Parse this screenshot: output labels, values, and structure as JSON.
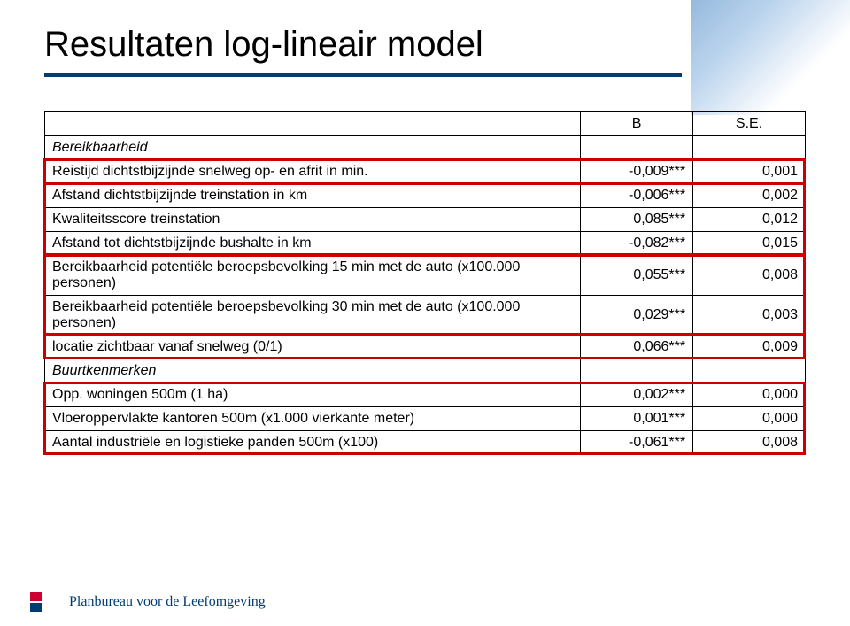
{
  "title": "Resultaten log-lineair model",
  "columns": {
    "b": "B",
    "se": "S.E."
  },
  "sections": {
    "bereikbaarheid": "Bereikbaarheid",
    "buurtkenmerken": "Buurtkenmerken"
  },
  "rows": {
    "r1": {
      "label": "Reistijd dichtstbijzijnde snelweg op- en afrit in min.",
      "b": "-0,009***",
      "se": "0,001"
    },
    "r2": {
      "label": "Afstand dichtstbijzijnde treinstation in km",
      "b": "-0,006***",
      "se": "0,002"
    },
    "r3": {
      "label": "Kwaliteitsscore treinstation",
      "b": "0,085***",
      "se": "0,012"
    },
    "r4": {
      "label": "Afstand tot dichtstbijzijnde bushalte in km",
      "b": "-0,082***",
      "se": "0,015"
    },
    "r5": {
      "label": "Bereikbaarheid potentiële beroepsbevolking 15 min met de auto (x100.000 personen)",
      "b": "0,055***",
      "se": "0,008"
    },
    "r6": {
      "label": "Bereikbaarheid potentiële beroepsbevolking 30 min met de auto (x100.000 personen)",
      "b": "0,029***",
      "se": "0,003"
    },
    "r7": {
      "label": "locatie zichtbaar vanaf snelweg (0/1)",
      "b": "0,066***",
      "se": "0,009"
    },
    "r8": {
      "label": "Opp. woningen 500m (1 ha)",
      "b": "0,002***",
      "se": "0,000"
    },
    "r9": {
      "label": "Vloeroppervlakte kantoren 500m (x1.000 vierkante meter)",
      "b": "0,001***",
      "se": "0,000"
    },
    "r10": {
      "label": "Aantal industriële en logistieke panden 500m (x100)",
      "b": "-0,061***",
      "se": "0,008"
    }
  },
  "footer": "Planbureau voor de Leefomgeving",
  "style": {
    "title_color": "#000000",
    "underline_color": "#003b71",
    "border_color": "#000000",
    "highlight_border_color": "#cc0000",
    "background_color": "#ffffff",
    "footer_color": "#003b71",
    "title_fontsize": 40,
    "body_fontsize": 16,
    "footer_fontsize": 16
  }
}
